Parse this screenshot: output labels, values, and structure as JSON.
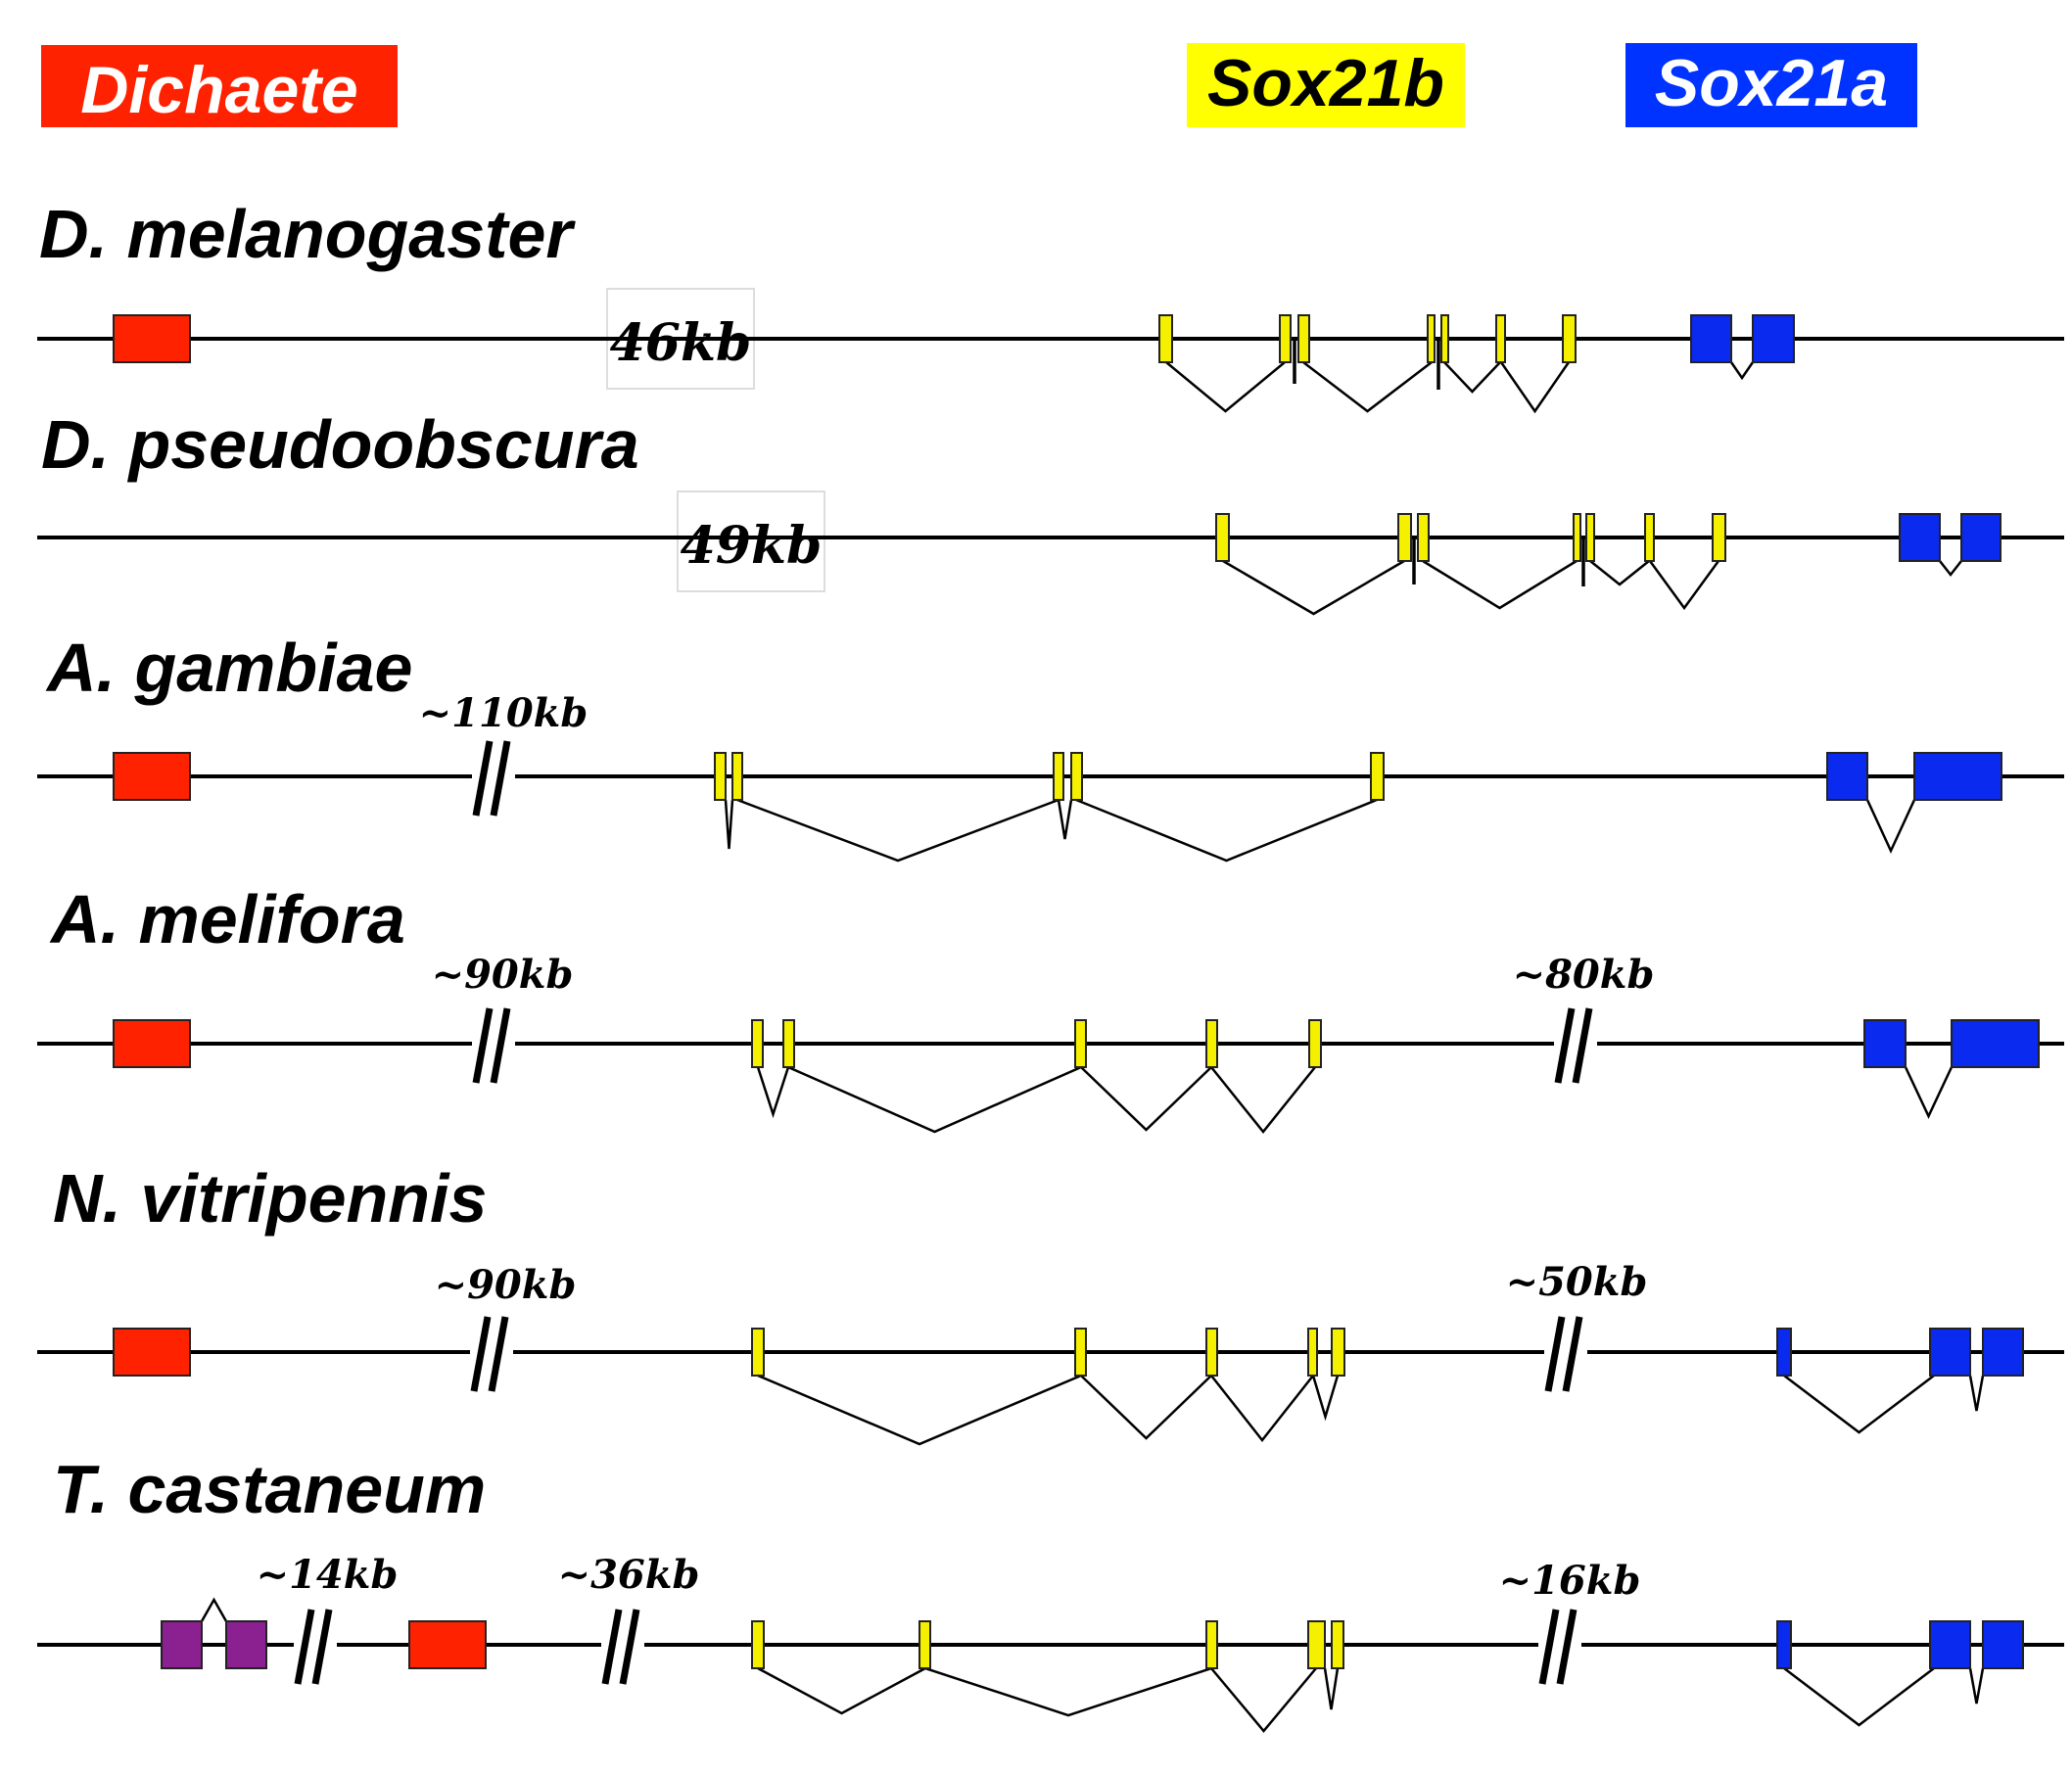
{
  "legend": {
    "dichaete": {
      "label": "Dichaete",
      "color": "#ff2200",
      "text_color": "#ffffff"
    },
    "sox21b": {
      "label": "Sox21b",
      "color": "#ffff00",
      "text_color": "#000000"
    },
    "sox21a": {
      "label": "Sox21a",
      "color": "#0033ff",
      "text_color": "#ffffff"
    }
  },
  "colors": {
    "dichaete_exon": "#ff2200",
    "sox21b_exon": "#f5f000",
    "sox21a_exon": "#0a2af0",
    "other_exon": "#8b2090",
    "line": "#000000"
  },
  "species": [
    {
      "name": "D. melanogaster",
      "distances": [
        "46kb"
      ]
    },
    {
      "name": "D. pseudoobscura",
      "distances": [
        "49kb"
      ]
    },
    {
      "name": "A. gambiae",
      "distances": [
        "~110kb"
      ]
    },
    {
      "name": "A. melifora",
      "distances": [
        "~90kb",
        "~80kb"
      ]
    },
    {
      "name": "N. vitripennis",
      "distances": [
        "~90kb",
        "~50kb"
      ]
    },
    {
      "name": "T. castaneum",
      "distances": [
        "~14kb",
        "~36kb",
        "~16kb"
      ]
    }
  ]
}
